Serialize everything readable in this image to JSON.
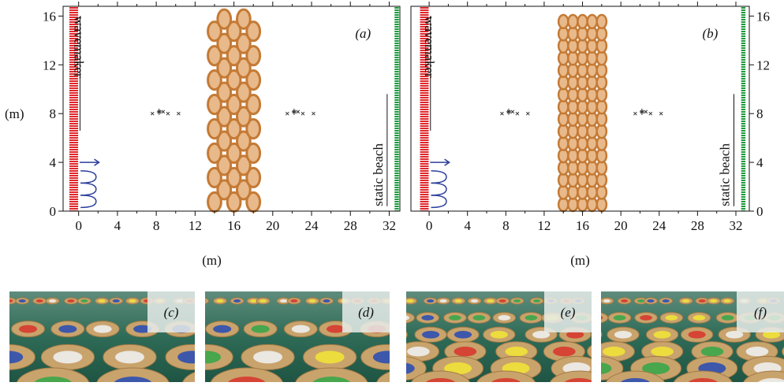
{
  "panels": [
    {
      "label": "(a)",
      "xlim": [
        -1.6,
        33.1
      ],
      "ylim": [
        0,
        16.8
      ],
      "xticks": [
        0,
        4,
        8,
        12,
        16,
        20,
        24,
        28,
        32
      ],
      "yticks": [
        0,
        4,
        8,
        12,
        16
      ],
      "wavemaker": "wavemaker",
      "beach": "static beach",
      "xlabel": "(m)",
      "ylabel": "(m)"
    },
    {
      "label": "(b)",
      "xlim": [
        -1.9,
        33.4
      ],
      "ylim": [
        0,
        16.8
      ],
      "xticks": [
        0,
        4,
        8,
        12,
        16,
        20,
        24,
        28,
        32
      ],
      "yticks": [
        0,
        4,
        8,
        12,
        16
      ],
      "wavemaker": "wavemaker",
      "beach": "static beach",
      "xlabel": "(m)"
    }
  ],
  "photos": [
    {
      "label": "(c)"
    },
    {
      "label": "(d)"
    },
    {
      "label": "(e)"
    },
    {
      "label": "(f)"
    }
  ]
}
